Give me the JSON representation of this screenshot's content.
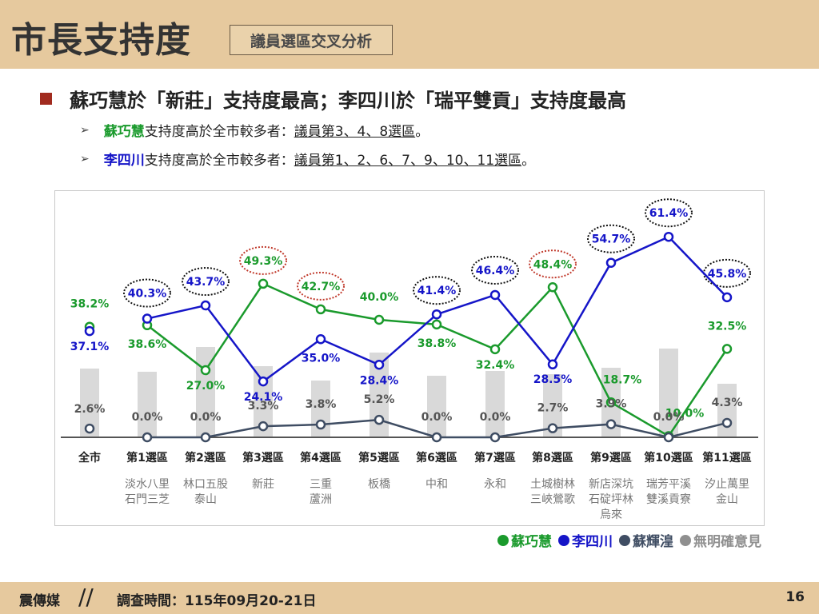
{
  "header": {
    "title": "市長支持度",
    "subtitle": "議員選區交叉分析"
  },
  "heading": "蘇巧慧於「新莊」支持度最高；李四川於「瑞平雙貢」支持度最高",
  "bullets": [
    {
      "name": "蘇巧慧",
      "text": "支持度高於全市較多者：",
      "detail": "議員第3、4、8選區",
      "end": "。"
    },
    {
      "name": "李四川",
      "text": "支持度高於全市較多者：",
      "detail": "議員第1、2、6、7、9、10、11選區",
      "end": "。"
    }
  ],
  "chart_data": {
    "type": "line",
    "categories": [
      "全市",
      "第1選區",
      "第2選區",
      "第3選區",
      "第4選區",
      "第5選區",
      "第6選區",
      "第7選區",
      "第8選區",
      "第9選區",
      "第10選區",
      "第11選區"
    ],
    "subcategories": [
      [],
      [
        "淡水八里",
        "石門三芝"
      ],
      [
        "林口五股",
        "泰山"
      ],
      [
        "新莊"
      ],
      [
        "三重",
        "蘆洲"
      ],
      [
        "板橋"
      ],
      [
        "中和"
      ],
      [
        "永和"
      ],
      [
        "土城樹林",
        "三峽鶯歌"
      ],
      [
        "新店深坑",
        "石碇坪林",
        "烏來"
      ],
      [
        "瑞芳平溪",
        "雙溪貢寮"
      ],
      [
        "汐止萬里",
        "金山"
      ]
    ],
    "series": [
      {
        "name": "蘇巧慧",
        "color": "#1a9a2c",
        "values": [
          38.2,
          38.6,
          27.0,
          49.3,
          42.7,
          40.0,
          38.8,
          32.4,
          48.4,
          18.7,
          10.0,
          32.5
        ],
        "labels": [
          "38.2%",
          "38.6%",
          "27.0%",
          "49.3%",
          "42.7%",
          "40.0%",
          "38.8%",
          "32.4%",
          "48.4%",
          "18.7%",
          "10.0%",
          "32.5%"
        ]
      },
      {
        "name": "李四川",
        "color": "#1515c8",
        "values": [
          37.1,
          40.3,
          43.7,
          24.1,
          35.0,
          28.4,
          41.4,
          46.4,
          28.5,
          54.7,
          61.4,
          45.8
        ],
        "labels": [
          "37.1%",
          "40.3%",
          "43.7%",
          "24.1%",
          "35.0%",
          "28.4%",
          "41.4%",
          "46.4%",
          "28.5%",
          "54.7%",
          "61.4%",
          "45.8%"
        ]
      },
      {
        "name": "蘇輝湟",
        "color": "#3f4d63",
        "values": [
          2.6,
          0.0,
          0.0,
          3.3,
          3.8,
          5.2,
          0.0,
          0.0,
          2.7,
          3.9,
          0.0,
          4.3
        ],
        "labels": [
          "2.6%",
          "0.0%",
          "0.0%",
          "3.3%",
          "3.8%",
          "5.2%",
          "0.0%",
          "0.0%",
          "2.7%",
          "3.9%",
          "0.0%",
          "4.3%"
        ]
      },
      {
        "name": "無明確意見",
        "color": "#8f8f8f"
      }
    ],
    "highlights": [
      {
        "series": "李四川",
        "index": 1,
        "color": "#111111"
      },
      {
        "series": "李四川",
        "index": 2,
        "color": "#111111"
      },
      {
        "series": "蘇巧慧",
        "index": 3,
        "color": "#c0392b"
      },
      {
        "series": "蘇巧慧",
        "index": 4,
        "color": "#c0392b"
      },
      {
        "series": "李四川",
        "index": 6,
        "color": "#111111"
      },
      {
        "series": "李四川",
        "index": 7,
        "color": "#111111"
      },
      {
        "series": "蘇巧慧",
        "index": 8,
        "color": "#c0392b"
      },
      {
        "series": "李四川",
        "index": 9,
        "color": "#111111"
      },
      {
        "series": "李四川",
        "index": 10,
        "color": "#111111"
      },
      {
        "series": "李四川",
        "index": 11,
        "color": "#111111"
      }
    ],
    "legend": [
      "蘇巧慧",
      "李四川",
      "蘇輝湟",
      "無明確意見"
    ],
    "legend_position": "bottom-right"
  },
  "footer": {
    "brand": "震傳媒",
    "survey": "調查時間：115年09月20-21日",
    "page": "16"
  }
}
